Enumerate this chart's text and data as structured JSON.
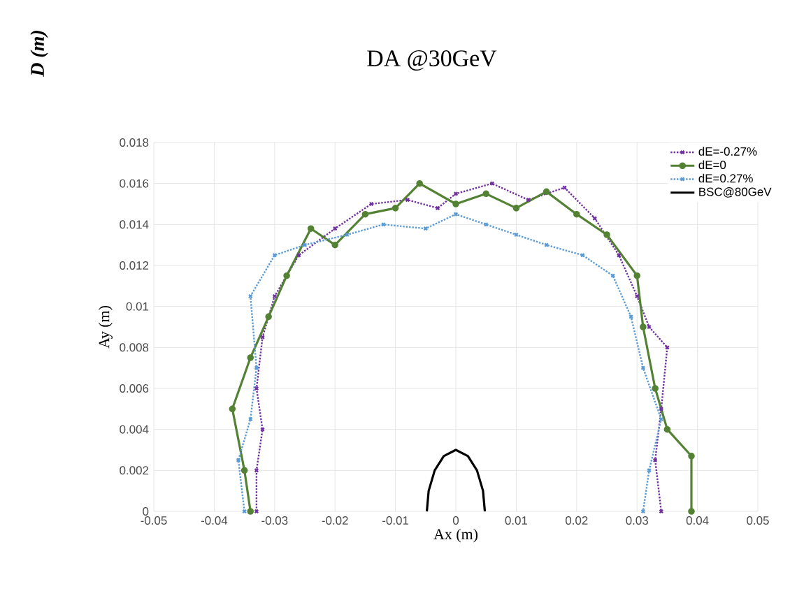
{
  "chart_data": {
    "type": "line",
    "title": "DA @30GeV",
    "xlabel": "Ax (m)",
    "ylabel": "Ay (m)",
    "annotations": [
      "D (m)"
    ],
    "xlim": [
      -0.05,
      0.05
    ],
    "xticks": [
      -0.05,
      -0.04,
      -0.03,
      -0.02,
      -0.01,
      0,
      0.01,
      0.02,
      0.03,
      0.04,
      0.05
    ],
    "ylim": [
      0,
      0.018
    ],
    "yticks": [
      0,
      0.002,
      0.004,
      0.006,
      0.008,
      0.01,
      0.012,
      0.014,
      0.016,
      0.018
    ],
    "grid": true,
    "legend": "top right",
    "series": [
      {
        "name": "dE=-0.27%",
        "color": "#7030a0",
        "line_style": "dotted",
        "marker": "cross",
        "x": [
          -0.033,
          -0.033,
          -0.032,
          -0.033,
          -0.032,
          -0.03,
          -0.026,
          -0.02,
          -0.014,
          -0.008,
          -0.003,
          0,
          0.006,
          0.012,
          0.018,
          0.023,
          0.027,
          0.03,
          0.032,
          0.035,
          0.034,
          0.033,
          0.034
        ],
        "values": [
          0,
          0.002,
          0.004,
          0.006,
          0.0085,
          0.0105,
          0.0125,
          0.0138,
          0.015,
          0.0152,
          0.0148,
          0.0155,
          0.016,
          0.0152,
          0.0158,
          0.0143,
          0.0125,
          0.0105,
          0.009,
          0.008,
          0.005,
          0.0025,
          0
        ]
      },
      {
        "name": "dE=0",
        "color": "#548235",
        "line_style": "solid",
        "marker": "circle",
        "x": [
          -0.034,
          -0.035,
          -0.037,
          -0.034,
          -0.031,
          -0.028,
          -0.024,
          -0.02,
          -0.015,
          -0.01,
          -0.006,
          0,
          0.005,
          0.01,
          0.015,
          0.02,
          0.025,
          0.03,
          0.031,
          0.033,
          0.035,
          0.039,
          0.039
        ],
        "values": [
          0,
          0.002,
          0.005,
          0.0075,
          0.0095,
          0.0115,
          0.0138,
          0.013,
          0.0145,
          0.0148,
          0.016,
          0.015,
          0.0155,
          0.0148,
          0.0156,
          0.0145,
          0.0135,
          0.0115,
          0.009,
          0.006,
          0.004,
          0.0027,
          0
        ]
      },
      {
        "name": "dE=0.27%",
        "color": "#5b9bd5",
        "line_style": "dotted",
        "marker": "cross",
        "x": [
          -0.035,
          -0.036,
          -0.034,
          -0.033,
          -0.034,
          -0.03,
          -0.025,
          -0.018,
          -0.012,
          -0.005,
          0,
          0.005,
          0.01,
          0.015,
          0.021,
          0.026,
          0.029,
          0.031,
          0.034,
          0.032,
          0.031
        ],
        "values": [
          0,
          0.0025,
          0.0045,
          0.007,
          0.0105,
          0.0125,
          0.013,
          0.0135,
          0.014,
          0.0138,
          0.0145,
          0.014,
          0.0135,
          0.013,
          0.0125,
          0.0115,
          0.0095,
          0.007,
          0.0045,
          0.002,
          0
        ]
      },
      {
        "name": "BSC@80GeV",
        "color": "#000000",
        "line_style": "solid",
        "marker": "none",
        "x": [
          -0.0048,
          -0.0045,
          -0.0035,
          -0.002,
          0,
          0.002,
          0.0035,
          0.0045,
          0.0048
        ],
        "values": [
          0,
          0.001,
          0.002,
          0.0027,
          0.003,
          0.0027,
          0.002,
          0.001,
          0
        ]
      }
    ]
  }
}
